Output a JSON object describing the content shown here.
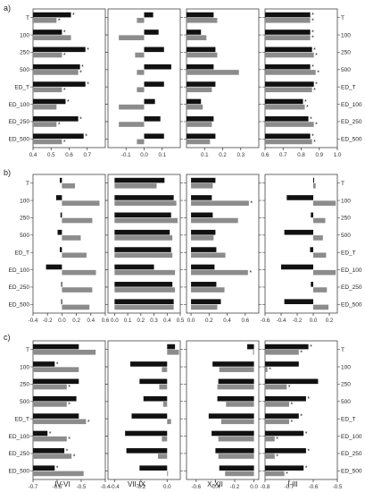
{
  "colors": {
    "series_dark": "#111111",
    "series_light": "#8c8c8c",
    "frame": "#444444"
  },
  "section_labels": [
    "a)",
    "b)",
    "c)"
  ],
  "season_labels": [
    "IV-VI",
    "VII-IX",
    "X-XII",
    "I-III"
  ],
  "chart_data": [
    {
      "block": 0,
      "panel": 0,
      "type": "bar",
      "orientation": "horizontal",
      "categories": [
        "T",
        "100",
        "250",
        "500",
        "ED_T",
        "ED_100",
        "ED_250",
        "ED_500"
      ],
      "xlim": [
        0.4,
        0.8
      ],
      "xticks": [
        0.4,
        0.5,
        0.6,
        0.7
      ],
      "tick_labels": [
        "0.4",
        "0.5",
        "0.6",
        "0.7"
      ],
      "y_label_side": "left",
      "series": [
        {
          "values": [
            0.61,
            0.56,
            0.69,
            0.66,
            0.69,
            0.58,
            0.65,
            0.68
          ]
        },
        {
          "values": [
            0.53,
            0.61,
            0.56,
            0.65,
            0.56,
            0.53,
            0.53,
            0.56
          ]
        }
      ],
      "annotations": [
        {
          "category": "T",
          "series": 0,
          "text": "*"
        },
        {
          "category": "T",
          "series": 1,
          "text": "*"
        },
        {
          "category": "100",
          "series": 0,
          "text": "*"
        },
        {
          "category": "250",
          "series": 0,
          "text": "*"
        },
        {
          "category": "250",
          "series": 1,
          "text": "*"
        },
        {
          "category": "500",
          "series": 0,
          "text": "*"
        },
        {
          "category": "500",
          "series": 1,
          "text": "*"
        },
        {
          "category": "ED_T",
          "series": 0,
          "text": "*"
        },
        {
          "category": "ED_T",
          "series": 1,
          "text": "*"
        },
        {
          "category": "ED_100",
          "series": 0,
          "text": "*"
        },
        {
          "category": "ED_250",
          "series": 0,
          "text": "*"
        },
        {
          "category": "ED_250",
          "series": 1,
          "text": "*"
        },
        {
          "category": "ED_500",
          "series": 0,
          "text": "*"
        },
        {
          "category": "ED_500",
          "series": 1,
          "text": "*"
        }
      ]
    },
    {
      "block": 0,
      "panel": 1,
      "type": "bar",
      "orientation": "horizontal",
      "categories": [
        "T",
        "100",
        "250",
        "500",
        "ED_T",
        "ED_100",
        "ED_250",
        "ED_500"
      ],
      "xlim": [
        -0.2,
        0.2
      ],
      "xticks": [
        -0.1,
        0.0,
        0.1
      ],
      "tick_labels": [
        "-0.1",
        "0.0",
        "0.1"
      ],
      "y_label_side": "none",
      "series": [
        {
          "values": [
            0.05,
            0.08,
            0.11,
            0.15,
            0.11,
            0.06,
            0.09,
            0.11
          ]
        },
        {
          "values": [
            -0.04,
            -0.14,
            -0.05,
            -0.04,
            -0.04,
            -0.14,
            -0.14,
            -0.04
          ]
        }
      ],
      "annotations": []
    },
    {
      "block": 0,
      "panel": 2,
      "type": "bar",
      "orientation": "horizontal",
      "categories": [
        "T",
        "100",
        "250",
        "500",
        "ED_T",
        "ED_100",
        "ED_250",
        "ED_500"
      ],
      "xlim": [
        0.0,
        0.4
      ],
      "xticks": [
        0.1,
        0.2,
        0.3
      ],
      "tick_labels": [
        "0.1",
        "0.2",
        "0.3"
      ],
      "y_label_side": "none",
      "series": [
        {
          "values": [
            0.15,
            0.08,
            0.16,
            0.15,
            0.16,
            0.08,
            0.15,
            0.16
          ]
        },
        {
          "values": [
            0.17,
            0.11,
            0.17,
            0.29,
            0.14,
            0.09,
            0.14,
            0.13
          ]
        }
      ],
      "annotations": []
    },
    {
      "block": 0,
      "panel": 3,
      "type": "bar",
      "orientation": "horizontal",
      "categories": [
        "T",
        "100",
        "250",
        "500",
        "ED_T",
        "ED_100",
        "ED_250",
        "ED_500"
      ],
      "xlim": [
        0.6,
        1.0
      ],
      "xticks": [
        0.6,
        0.7,
        0.8,
        0.9,
        1.0
      ],
      "tick_labels": [
        "0.6",
        "0.7",
        "0.8",
        "0.9",
        "1.0"
      ],
      "y_label_side": "right",
      "series": [
        {
          "values": [
            0.85,
            0.85,
            0.86,
            0.85,
            0.87,
            0.81,
            0.84,
            0.85
          ]
        },
        {
          "values": [
            0.85,
            0.85,
            0.87,
            0.88,
            0.86,
            0.82,
            0.87,
            0.86
          ]
        }
      ],
      "annotations": [
        {
          "category": "T",
          "series": 0,
          "text": "*"
        },
        {
          "category": "T",
          "series": 1,
          "text": "*"
        },
        {
          "category": "100",
          "series": 0,
          "text": "*"
        },
        {
          "category": "100",
          "series": 1,
          "text": "*"
        },
        {
          "category": "250",
          "series": 0,
          "text": "*"
        },
        {
          "category": "250",
          "series": 1,
          "text": "*"
        },
        {
          "category": "500",
          "series": 0,
          "text": "*"
        },
        {
          "category": "500",
          "series": 1,
          "text": "*"
        },
        {
          "category": "ED_T",
          "series": 0,
          "text": "*"
        },
        {
          "category": "ED_T",
          "series": 1,
          "text": "*"
        },
        {
          "category": "ED_100",
          "series": 0,
          "text": "*"
        },
        {
          "category": "ED_100",
          "series": 1,
          "text": "*"
        },
        {
          "category": "ED_250",
          "series": 0,
          "text": "*"
        },
        {
          "category": "ED_250",
          "series": 1,
          "text": "*"
        },
        {
          "category": "ED_500",
          "series": 0,
          "text": "*"
        },
        {
          "category": "ED_500",
          "series": 1,
          "text": "*"
        }
      ]
    },
    {
      "block": 1,
      "panel": 0,
      "type": "bar",
      "orientation": "horizontal",
      "categories": [
        "T",
        "100",
        "250",
        "500",
        "ED_T",
        "ED_100",
        "ED_250",
        "ED_500"
      ],
      "xlim": [
        -0.4,
        0.6
      ],
      "xticks": [
        -0.4,
        -0.2,
        0.0,
        0.2,
        0.4,
        0.6
      ],
      "tick_labels": [
        "-0.4",
        "-0.2",
        "0.0",
        "0.2",
        "0.4",
        "0.6"
      ],
      "y_label_side": "left",
      "series": [
        {
          "values": [
            -0.03,
            -0.08,
            -0.02,
            -0.06,
            -0.03,
            -0.22,
            -0.01,
            -0.01
          ]
        },
        {
          "values": [
            0.18,
            0.52,
            0.42,
            0.26,
            0.34,
            0.47,
            0.42,
            0.38
          ]
        }
      ],
      "annotations": []
    },
    {
      "block": 1,
      "panel": 1,
      "type": "bar",
      "orientation": "horizontal",
      "categories": [
        "T",
        "100",
        "250",
        "500",
        "ED_T",
        "ED_100",
        "ED_250",
        "ED_500"
      ],
      "xlim": [
        -0.05,
        0.5
      ],
      "xticks": [
        0.0,
        0.1,
        0.2,
        0.3,
        0.4,
        0.5
      ],
      "tick_labels": [
        "0.0",
        "0.1",
        "0.2",
        "0.3",
        "0.4",
        "0.5"
      ],
      "y_label_side": "none",
      "series": [
        {
          "values": [
            0.38,
            0.45,
            0.43,
            0.42,
            0.43,
            0.3,
            0.44,
            0.45
          ]
        },
        {
          "values": [
            0.32,
            0.47,
            0.48,
            0.44,
            0.44,
            0.46,
            0.46,
            0.45
          ]
        }
      ],
      "annotations": []
    },
    {
      "block": 1,
      "panel": 2,
      "type": "bar",
      "orientation": "horizontal",
      "categories": [
        "T",
        "100",
        "250",
        "500",
        "ED_T",
        "ED_100",
        "ED_250",
        "ED_500"
      ],
      "xlim": [
        -0.05,
        0.75
      ],
      "xticks": [
        0.0,
        0.2,
        0.4,
        0.6
      ],
      "tick_labels": [
        "0.0",
        "0.2",
        "0.4",
        "0.6"
      ],
      "y_label_side": "none",
      "series": [
        {
          "values": [
            0.27,
            0.23,
            0.24,
            0.27,
            0.28,
            0.26,
            0.28,
            0.33
          ]
        },
        {
          "values": [
            0.24,
            0.64,
            0.52,
            0.25,
            0.38,
            0.63,
            0.37,
            0.29
          ]
        }
      ],
      "annotations": [
        {
          "category": "100",
          "series": 1,
          "text": "*"
        },
        {
          "category": "ED_100",
          "series": 1,
          "text": "*"
        }
      ]
    },
    {
      "block": 1,
      "panel": 3,
      "type": "bar",
      "orientation": "horizontal",
      "categories": [
        "T",
        "100",
        "250",
        "500",
        "ED_T",
        "ED_100",
        "ED_250",
        "ED_500"
      ],
      "xlim": [
        -0.6,
        0.3
      ],
      "xticks": [
        -0.6,
        -0.4,
        -0.2,
        0.0,
        0.2
      ],
      "tick_labels": [
        "-0.6",
        "-0.4",
        "-0.2",
        "0.0",
        "0.2"
      ],
      "y_label_side": "right",
      "series": [
        {
          "values": [
            0.0,
            -0.33,
            -0.03,
            -0.36,
            -0.04,
            -0.4,
            -0.03,
            -0.36
          ]
        },
        {
          "values": [
            0.03,
            0.28,
            0.15,
            0.12,
            0.16,
            0.28,
            0.17,
            0.19
          ]
        }
      ],
      "annotations": []
    },
    {
      "block": 2,
      "panel": 0,
      "type": "bar",
      "orientation": "horizontal",
      "categories": [
        "T",
        "100",
        "250",
        "500",
        "ED_T",
        "ED_100",
        "ED_250",
        "ED_500"
      ],
      "xlim": [
        -0.7,
        -0.4
      ],
      "xticks": [
        -0.7,
        -0.6,
        -0.5,
        -0.4
      ],
      "tick_labels": [
        "-0.7",
        "-0.6",
        "-0.5",
        "-0.4"
      ],
      "y_label_side": "left",
      "series": [
        {
          "values": [
            -0.51,
            -0.61,
            -0.51,
            -0.52,
            -0.51,
            -0.64,
            -0.57,
            -0.61
          ]
        },
        {
          "values": [
            -0.44,
            -0.51,
            -0.56,
            -0.56,
            -0.48,
            -0.56,
            -0.54,
            -0.49
          ]
        }
      ],
      "annotations": [
        {
          "category": "100",
          "series": 0,
          "text": "*"
        },
        {
          "category": "250",
          "series": 1,
          "text": "*"
        },
        {
          "category": "500",
          "series": 1,
          "text": "*"
        },
        {
          "category": "ED_T",
          "series": 1,
          "text": "*"
        },
        {
          "category": "ED_100",
          "series": 0,
          "text": "*"
        },
        {
          "category": "ED_100",
          "series": 1,
          "text": "*"
        },
        {
          "category": "ED_250",
          "series": 0,
          "text": "*"
        },
        {
          "category": "ED_250",
          "series": 1,
          "text": "*"
        },
        {
          "category": "ED_500",
          "series": 0,
          "text": "*"
        }
      ]
    },
    {
      "block": 2,
      "panel": 1,
      "type": "bar",
      "orientation": "horizontal",
      "categories": [
        "T",
        "100",
        "250",
        "500",
        "ED_T",
        "ED_100",
        "ED_250",
        "ED_500"
      ],
      "xlim": [
        -0.45,
        0.1
      ],
      "xticks": [
        -0.4,
        -0.2,
        0.0
      ],
      "tick_labels": [
        "-0.4",
        "-0.2",
        "0.0"
      ],
      "y_label_side": "none",
      "series": [
        {
          "values": [
            0.06,
            -0.28,
            -0.21,
            -0.18,
            -0.27,
            -0.32,
            -0.31,
            -0.21
          ]
        },
        {
          "values": [
            0.09,
            -0.04,
            -0.06,
            -0.03,
            0.03,
            -0.04,
            -0.07,
            0.0
          ]
        }
      ],
      "annotations": []
    },
    {
      "block": 2,
      "panel": 2,
      "type": "bar",
      "orientation": "horizontal",
      "categories": [
        "T",
        "100",
        "250",
        "500",
        "ED_T",
        "ED_100",
        "ED_250",
        "ED_500"
      ],
      "xlim": [
        -0.7,
        0.05
      ],
      "xticks": [
        -0.6,
        -0.4,
        -0.2,
        0.0
      ],
      "tick_labels": [
        "-0.6",
        "-0.4",
        "-0.2",
        "0.0"
      ],
      "y_label_side": "none",
      "series": [
        {
          "values": [
            -0.07,
            -0.43,
            -0.37,
            -0.38,
            -0.47,
            -0.44,
            -0.4,
            -0.36
          ]
        },
        {
          "values": [
            -0.01,
            -0.36,
            -0.38,
            -0.29,
            -0.34,
            -0.37,
            -0.37,
            -0.3
          ]
        }
      ],
      "annotations": []
    },
    {
      "block": 2,
      "panel": 3,
      "type": "bar",
      "orientation": "horizontal",
      "categories": [
        "T",
        "100",
        "250",
        "500",
        "ED_T",
        "ED_100",
        "ED_250",
        "ED_500"
      ],
      "xlim": [
        -0.8,
        -0.5
      ],
      "xticks": [
        -0.8,
        -0.7,
        -0.6,
        -0.5
      ],
      "tick_labels": [
        "-0.8",
        "-0.7",
        "-0.6",
        "-0.5"
      ],
      "y_label_side": "right",
      "series": [
        {
          "values": [
            -0.62,
            -0.66,
            -0.58,
            -0.63,
            -0.66,
            -0.64,
            -0.63,
            -0.64
          ]
        },
        {
          "values": [
            -0.66,
            -0.79,
            -0.71,
            -0.7,
            -0.7,
            -0.76,
            -0.76,
            -0.72
          ]
        }
      ],
      "annotations": [
        {
          "category": "T",
          "series": 0,
          "text": "*"
        },
        {
          "category": "T",
          "series": 1,
          "text": "*"
        },
        {
          "category": "100",
          "series": 1,
          "text": "*"
        },
        {
          "category": "250",
          "series": 1,
          "text": "*"
        },
        {
          "category": "500",
          "series": 0,
          "text": "*"
        },
        {
          "category": "500",
          "series": 1,
          "text": "*"
        },
        {
          "category": "ED_T",
          "series": 0,
          "text": "*"
        },
        {
          "category": "ED_T",
          "series": 1,
          "text": "*"
        },
        {
          "category": "ED_100",
          "series": 0,
          "text": "*"
        },
        {
          "category": "ED_100",
          "series": 1,
          "text": "*"
        },
        {
          "category": "ED_250",
          "series": 0,
          "text": "*"
        },
        {
          "category": "ED_250",
          "series": 1,
          "text": "*"
        },
        {
          "category": "ED_500",
          "series": 0,
          "text": "*"
        },
        {
          "category": "ED_500",
          "series": 1,
          "text": "*"
        }
      ]
    }
  ]
}
